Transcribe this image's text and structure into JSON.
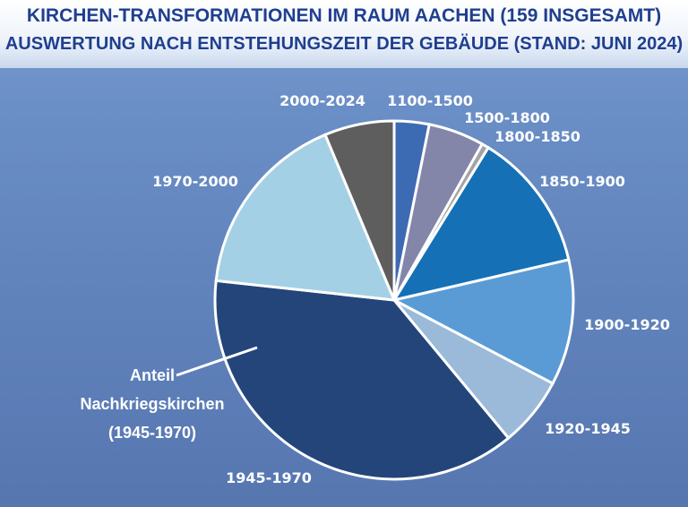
{
  "chart_data": {
    "type": "pie",
    "title": "KIRCHEN-TRANSFORMATIONEN IM RAUM AACHEN (159 INSGESAMT)",
    "subtitle": "AUSWERTUNG NACH ENTSTEHUNGSZEIT DER GEBÄUDE (STAND: JUNI 2024)",
    "categories": [
      "1100-1500",
      "1500-1800",
      "1800-1850",
      "1850-1900",
      "1900-1920",
      "1920-1945",
      "1945-1970",
      "1970-2000",
      "2000-2024"
    ],
    "values": [
      5,
      8,
      1,
      20,
      18,
      10,
      60,
      27,
      10
    ],
    "colors": [
      "#3d6bb3",
      "#8386a9",
      "#a3a3a3",
      "#1570b6",
      "#5b9bd5",
      "#9bbad9",
      "#24457a",
      "#a4d0e5",
      "#5e5e5e"
    ],
    "annotation": [
      "Anteil",
      "Nachkriegskirchen",
      "(1945-1970)"
    ],
    "legend": "none"
  }
}
